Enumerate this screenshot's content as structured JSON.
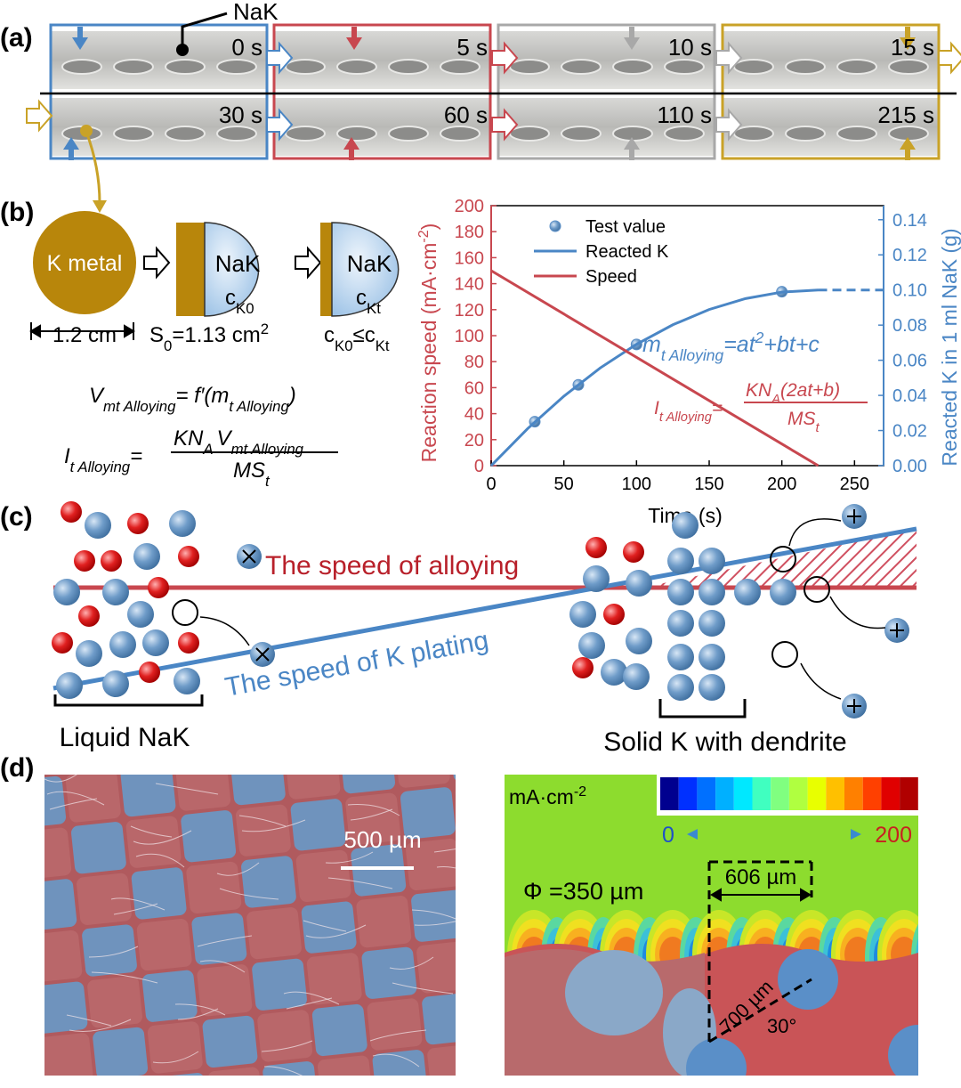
{
  "panel_labels": [
    "(a)",
    "(b)",
    "(c)",
    "(d)"
  ],
  "panel_a": {
    "callout": "NaK",
    "times": [
      "0 s",
      "5 s",
      "10 s",
      "15 s",
      "30 s",
      "60 s",
      "110 s",
      "215 s"
    ]
  },
  "panel_b": {
    "k_metal": "K metal",
    "diameter": "1.2 cm",
    "nak_1": "NaK",
    "conc_1": [
      "c",
      "K0"
    ],
    "nak_2": "NaK",
    "conc_2": [
      "c",
      "Kt"
    ],
    "area": [
      "S",
      "0",
      "=1.13 cm",
      "2"
    ],
    "conc_relation": [
      "c",
      "K0",
      "≤c",
      "Kt"
    ],
    "equation_v": [
      "V",
      "mt Alloying",
      "= f′(m",
      "t Alloying",
      ")"
    ],
    "equation_i": {
      "left": [
        "I",
        "t Alloying",
        "="
      ],
      "numerator": [
        "KN",
        "A",
        "V",
        "mt Alloying"
      ],
      "denominator": [
        "MS",
        "t"
      ]
    }
  },
  "chart_data": {
    "type": "line",
    "x_label": "Time (s)",
    "y_label": [
      "Reaction speed (mA·cm",
      "-2",
      ")"
    ],
    "y2_label": "Reacted K in 1 ml NaK (g)",
    "xlim": [
      0,
      270
    ],
    "xticks": [
      0,
      50,
      100,
      150,
      200,
      250
    ],
    "ylim": [
      0,
      200
    ],
    "yticks": [
      0,
      20,
      40,
      60,
      80,
      100,
      120,
      140,
      160,
      180,
      200
    ],
    "y2lim": [
      0,
      0.148
    ],
    "y2ticks": [
      {
        "value": 0,
        "label": "0.00"
      },
      0.02,
      0.04,
      0.06,
      0.08,
      {
        "value": 0.1,
        "label": "0.10"
      },
      0.12,
      0.14
    ],
    "series": [
      {
        "name": "Test value",
        "kind": "scatter",
        "color": "#5b8fc7",
        "axis": "y2",
        "x": [
          30,
          60,
          100,
          200
        ],
        "values": [
          0.025,
          0.046,
          0.069,
          0.099
        ]
      },
      {
        "name": "Reacted K",
        "kind": "line",
        "color": "#4a86c5",
        "axis": "y2",
        "x": [
          0,
          25,
          50,
          75,
          100,
          125,
          150,
          175,
          200,
          225
        ],
        "values": [
          0,
          0.021,
          0.0395,
          0.0556,
          0.0691,
          0.0802,
          0.0889,
          0.0951,
          0.0988,
          0.1
        ],
        "dash_x": [
          225,
          270
        ],
        "dash_values": [
          0.1,
          0.1
        ]
      },
      {
        "name": "Speed",
        "kind": "line",
        "color": "#c8474f",
        "axis": "y",
        "x": [
          0,
          225
        ],
        "values": [
          150,
          0
        ]
      }
    ],
    "equation_m": [
      "m",
      "t Alloying",
      "=at",
      "2",
      "+bt+c"
    ],
    "equation_i": {
      "left": [
        "I",
        "t Alloying",
        "="
      ],
      "numerator": [
        "KN",
        "A",
        "(2at+b)"
      ],
      "denominator": [
        "MS",
        "t"
      ]
    }
  },
  "panel_c": {
    "alloying": "The speed of alloying",
    "plating": "The speed of K plating",
    "liquid": "Liquid NaK",
    "solid": "Solid K with dendrite"
  },
  "panel_d": {
    "scale": "500 µm",
    "unit": [
      "mA·cm",
      "-2"
    ],
    "cb_min": "0",
    "cb_max": "200",
    "phi": "Φ =350 µm",
    "spacing": "606 µm",
    "length": "700 µm",
    "angle": "30°"
  }
}
